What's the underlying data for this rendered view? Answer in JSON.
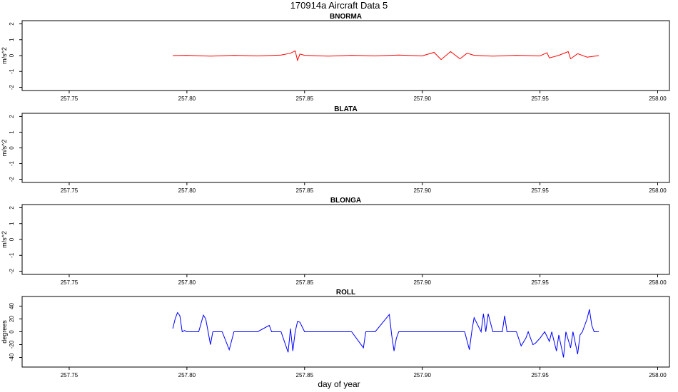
{
  "title": "170914a   Aircraft Data 5",
  "xlabel": "day of year",
  "chart_data": [
    {
      "type": "line",
      "title": "BNORMA",
      "ylabel": "m/s^2",
      "color": "#ff0000",
      "xlim": [
        257.73,
        258.005
      ],
      "ylim": [
        -2.2,
        2.2
      ],
      "xticks": [
        "257.75",
        "257.80",
        "257.85",
        "257.90",
        "257.95",
        "258.00"
      ],
      "yticks": [
        "-2",
        "-1",
        "0",
        "1",
        "2"
      ],
      "series": [
        {
          "x": [
            257.794,
            257.8,
            257.81,
            257.82,
            257.83,
            257.84,
            257.844,
            257.846,
            257.847,
            257.848,
            257.85,
            257.86,
            257.87,
            257.88,
            257.89,
            257.9,
            257.905,
            257.908,
            257.912,
            257.916,
            257.919,
            257.922,
            257.93,
            257.94,
            257.95,
            257.953,
            257.954,
            257.958,
            257.962,
            257.963,
            257.966,
            257.97,
            257.975
          ],
          "y": [
            0.0,
            0.02,
            -0.03,
            0.02,
            -0.02,
            0.03,
            0.15,
            0.3,
            -0.3,
            0.1,
            0.02,
            -0.03,
            0.02,
            -0.02,
            0.03,
            -0.02,
            0.2,
            -0.25,
            0.25,
            -0.2,
            0.15,
            0.02,
            -0.03,
            0.02,
            -0.02,
            0.18,
            -0.15,
            0.02,
            0.25,
            -0.2,
            0.12,
            -0.1,
            0.0
          ]
        }
      ]
    },
    {
      "type": "line",
      "title": "BLATA",
      "ylabel": "m/s^2",
      "color": "#000000",
      "xlim": [
        257.73,
        258.005
      ],
      "ylim": [
        -2.2,
        2.2
      ],
      "xticks": [
        "257.75",
        "257.80",
        "257.85",
        "257.90",
        "257.95",
        "258.00"
      ],
      "yticks": [
        "-2",
        "-1",
        "0",
        "1",
        "2"
      ],
      "series": []
    },
    {
      "type": "line",
      "title": "BLONGA",
      "ylabel": "m/s^2",
      "color": "#000000",
      "xlim": [
        257.73,
        258.005
      ],
      "ylim": [
        -2.2,
        2.2
      ],
      "xticks": [
        "257.75",
        "257.80",
        "257.85",
        "257.90",
        "257.95",
        "258.00"
      ],
      "yticks": [
        "-2",
        "-1",
        "0",
        "1",
        "2"
      ],
      "series": []
    },
    {
      "type": "line",
      "title": "ROLL",
      "ylabel": "degrees",
      "color": "#0000ff",
      "xlim": [
        257.73,
        258.005
      ],
      "ylim": [
        -55,
        55
      ],
      "xticks": [
        "257.75",
        "257.80",
        "257.85",
        "257.90",
        "257.95",
        "258.00"
      ],
      "yticks": [
        "-40",
        "-20",
        "0",
        "20",
        "40"
      ],
      "series": [
        {
          "x": [
            257.794,
            257.795,
            257.796,
            257.797,
            257.798,
            257.799,
            257.8,
            257.805,
            257.807,
            257.808,
            257.809,
            257.81,
            257.811,
            257.815,
            257.818,
            257.82,
            257.821,
            257.83,
            257.835,
            257.836,
            257.84,
            257.843,
            257.844,
            257.845,
            257.846,
            257.847,
            257.848,
            257.85,
            257.851,
            257.853,
            257.854,
            257.86,
            257.87,
            257.875,
            257.876,
            257.88,
            257.886,
            257.887,
            257.888,
            257.889,
            257.89,
            257.895,
            257.9,
            257.91,
            257.918,
            257.92,
            257.921,
            257.922,
            257.925,
            257.926,
            257.927,
            257.928,
            257.93,
            257.932,
            257.934,
            257.935,
            257.936,
            257.94,
            257.942,
            257.944,
            257.945,
            257.947,
            257.948,
            257.95,
            257.952,
            257.954,
            257.955,
            257.957,
            257.958,
            257.96,
            257.961,
            257.963,
            257.964,
            257.966,
            257.967,
            257.968,
            257.969,
            257.97,
            257.971,
            257.972,
            257.973,
            257.975
          ],
          "y": [
            5,
            20,
            30,
            25,
            0,
            2,
            0,
            0,
            26,
            20,
            0,
            -20,
            0,
            0,
            -28,
            0,
            0,
            0,
            10,
            0,
            0,
            -32,
            5,
            -30,
            0,
            16,
            15,
            0,
            0,
            0,
            0,
            0,
            0,
            -25,
            0,
            0,
            27,
            -5,
            -30,
            -10,
            0,
            0,
            0,
            0,
            0,
            -28,
            0,
            22,
            0,
            28,
            0,
            28,
            0,
            0,
            0,
            25,
            0,
            0,
            -22,
            -10,
            0,
            -20,
            -18,
            -10,
            0,
            -15,
            0,
            -30,
            -5,
            -40,
            0,
            -25,
            0,
            -35,
            -5,
            0,
            10,
            20,
            35,
            10,
            0,
            0
          ]
        }
      ]
    }
  ]
}
